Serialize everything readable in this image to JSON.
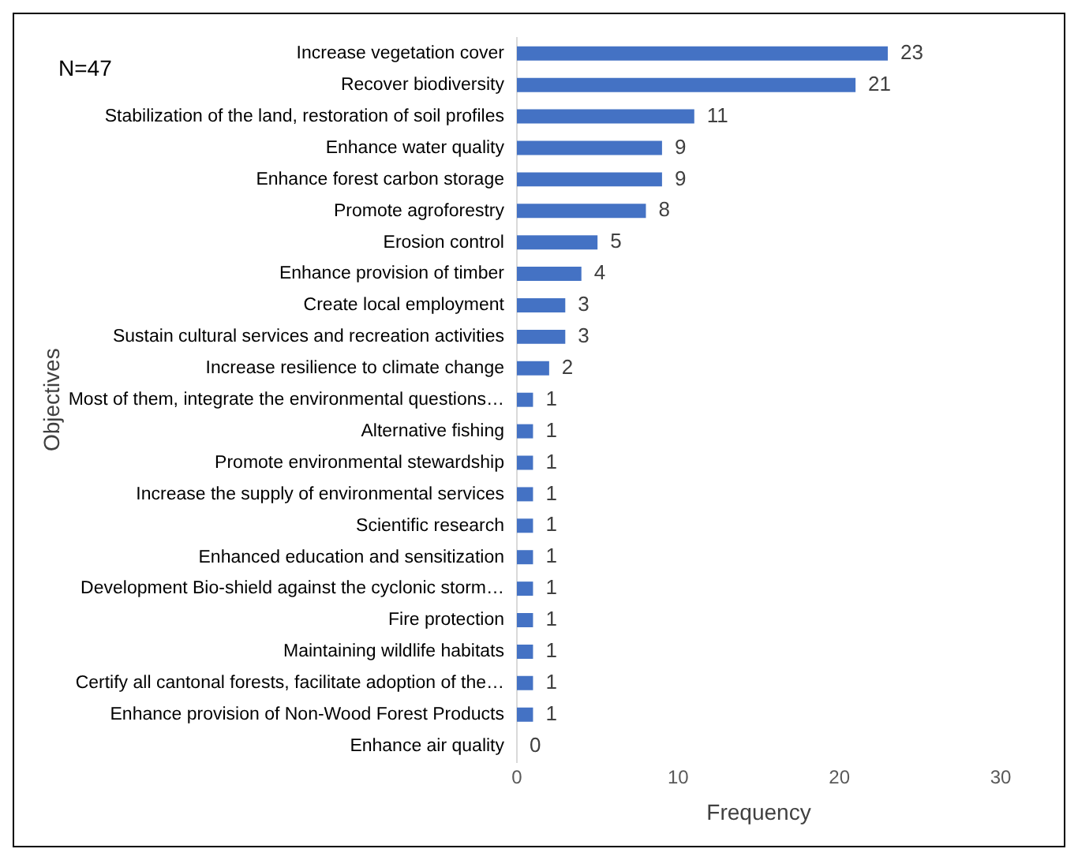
{
  "chart_data": {
    "type": "bar",
    "orientation": "horizontal",
    "xlabel": "Frequency",
    "ylabel": "Objectives",
    "categories": [
      "Increase vegetation cover",
      "Recover biodiversity",
      "Stabilization of the land, restoration of soil profiles",
      "Enhance water quality",
      "Enhance forest carbon storage",
      "Promote agroforestry",
      "Erosion control",
      "Enhance provision of timber",
      "Create local employment",
      "Sustain cultural services and recreation activities",
      "Increase resilience to climate change",
      "Most of them, integrate the environmental questions…",
      "Alternative fishing",
      "Promote environmental stewardship",
      "Increase the supply of environmental services",
      "Scientific research",
      "Enhanced education and sensitization",
      "Development Bio-shield against the cyclonic storm…",
      "Fire protection",
      "Maintaining wildlife habitats",
      "Certify all cantonal forests, facilitate adoption of the…",
      "Enhance provision of Non-Wood Forest Products",
      "Enhance air quality"
    ],
    "values": [
      23,
      21,
      11,
      9,
      9,
      8,
      5,
      4,
      3,
      3,
      2,
      1,
      1,
      1,
      1,
      1,
      1,
      1,
      1,
      1,
      1,
      1,
      0
    ],
    "color": "#4472c4",
    "xlim": [
      0,
      30
    ],
    "xticks": [
      0,
      10,
      20,
      30
    ],
    "grid": false,
    "data_labels": true,
    "legend": false,
    "annotations": [
      "N=47"
    ]
  }
}
